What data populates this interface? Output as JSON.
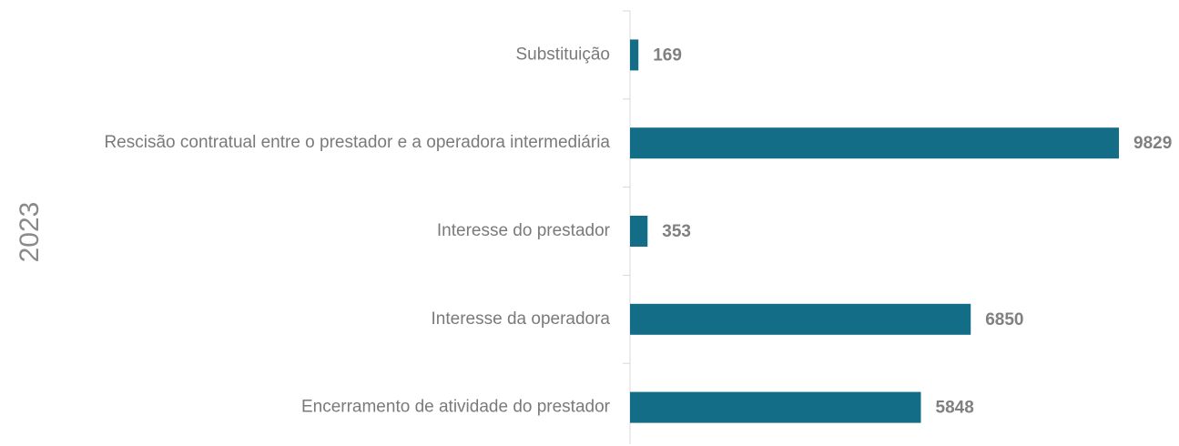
{
  "chart_data": {
    "type": "bar",
    "orientation": "horizontal",
    "y_label": "2023",
    "categories": [
      "Substituição",
      "Rescisão contratual entre o prestador e a operadora intermediária",
      "Interesse do prestador",
      "Interesse da operadora",
      "Encerramento de atividade do prestador"
    ],
    "values": [
      169,
      9829,
      353,
      6850,
      5848
    ],
    "color": "#136d87"
  }
}
